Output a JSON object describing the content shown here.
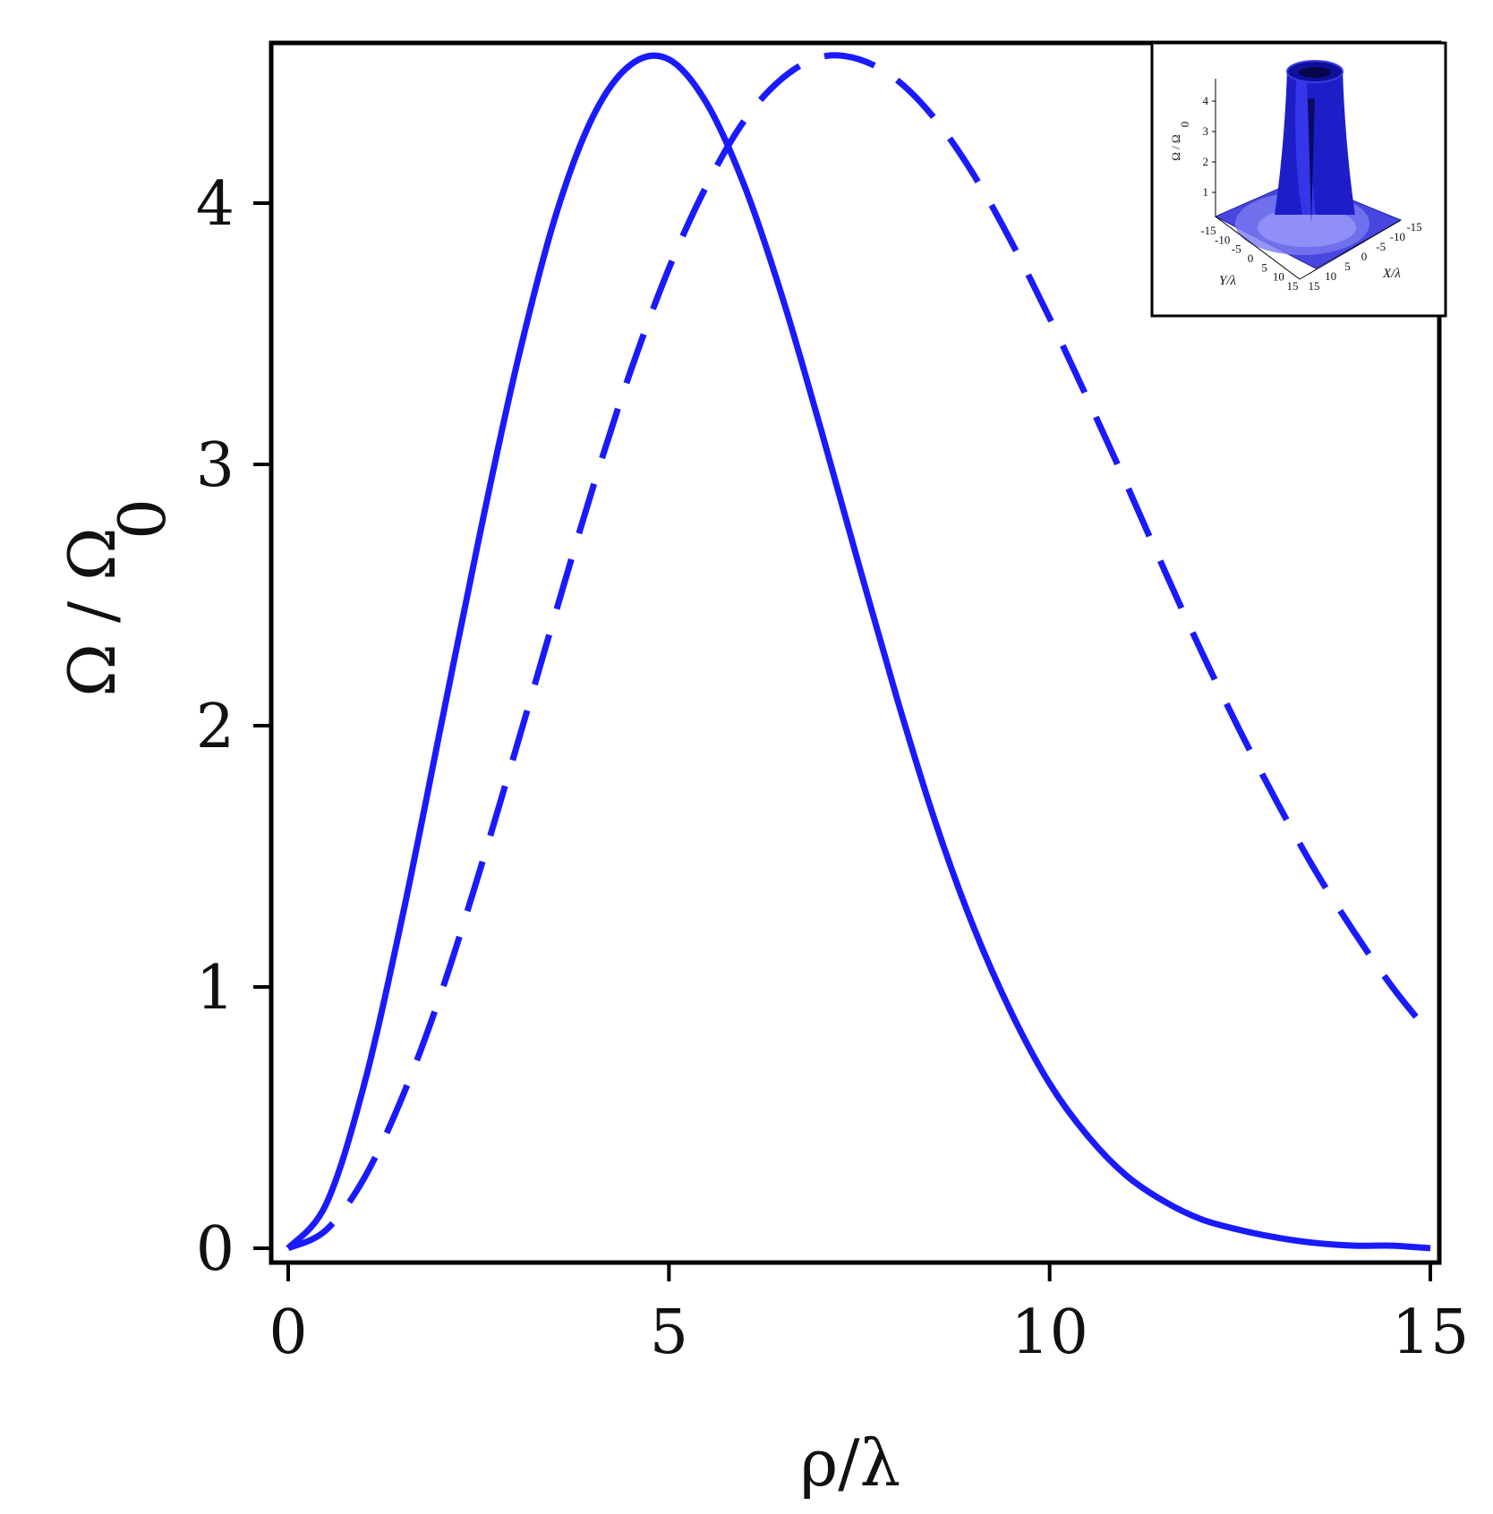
{
  "chart_data": {
    "type": "line",
    "xlabel": "ρ/λ",
    "ylabel_main": "Ω / Ω",
    "ylabel_sub": "0",
    "xlim": [
      0,
      15
    ],
    "ylim": [
      0,
      4.6
    ],
    "xticks": [
      "0",
      "5",
      "10",
      "15"
    ],
    "yticks": [
      "0",
      "1",
      "2",
      "3",
      "4"
    ],
    "grid": false,
    "line_color": "#1a1aff",
    "series": [
      {
        "style": "solid",
        "x": [
          0,
          0.5,
          1,
          1.5,
          2,
          2.5,
          3,
          3.5,
          4,
          4.5,
          5,
          5.5,
          6,
          6.5,
          7,
          7.5,
          8,
          8.5,
          9,
          9.5,
          10,
          10.5,
          11,
          11.5,
          12,
          12.5,
          13,
          13.5,
          14,
          14.5,
          15
        ],
        "y": [
          0,
          0.17,
          0.63,
          1.27,
          1.99,
          2.71,
          3.38,
          3.94,
          4.33,
          4.53,
          4.55,
          4.38,
          4.06,
          3.63,
          3.13,
          2.61,
          2.1,
          1.63,
          1.23,
          0.9,
          0.63,
          0.43,
          0.28,
          0.18,
          0.11,
          0.07,
          0.04,
          0.02,
          0.01,
          0.01,
          0.0
        ]
      },
      {
        "style": "dashed",
        "x": [
          0,
          0.5,
          1,
          1.5,
          2,
          2.5,
          3,
          3.5,
          4,
          4.5,
          5,
          5.5,
          6,
          6.5,
          7,
          7.5,
          8,
          8.5,
          9,
          9.5,
          10,
          10.5,
          11,
          11.5,
          12,
          12.5,
          13,
          13.5,
          14,
          14.5,
          15
        ],
        "y": [
          0,
          0.07,
          0.27,
          0.58,
          0.97,
          1.43,
          1.92,
          2.42,
          2.91,
          3.36,
          3.75,
          4.07,
          4.32,
          4.48,
          4.56,
          4.55,
          4.47,
          4.32,
          4.11,
          3.85,
          3.56,
          3.25,
          2.93,
          2.6,
          2.28,
          1.98,
          1.7,
          1.44,
          1.21,
          1.0,
          0.82
        ]
      }
    ],
    "inset": {
      "zlabel": "Ω / Ω",
      "zlabel_sub": "0",
      "zticks": [
        "1",
        "2",
        "3",
        "4"
      ],
      "yaxis_label": "Y/λ",
      "xaxis_label": "X/λ",
      "yaxis_ticks": [
        "-15",
        "-10",
        "-5",
        "0",
        "5",
        "10",
        "15"
      ],
      "xaxis_ticks": [
        "15",
        "10",
        "5",
        "0",
        "-5",
        "-10",
        "-15"
      ]
    }
  }
}
